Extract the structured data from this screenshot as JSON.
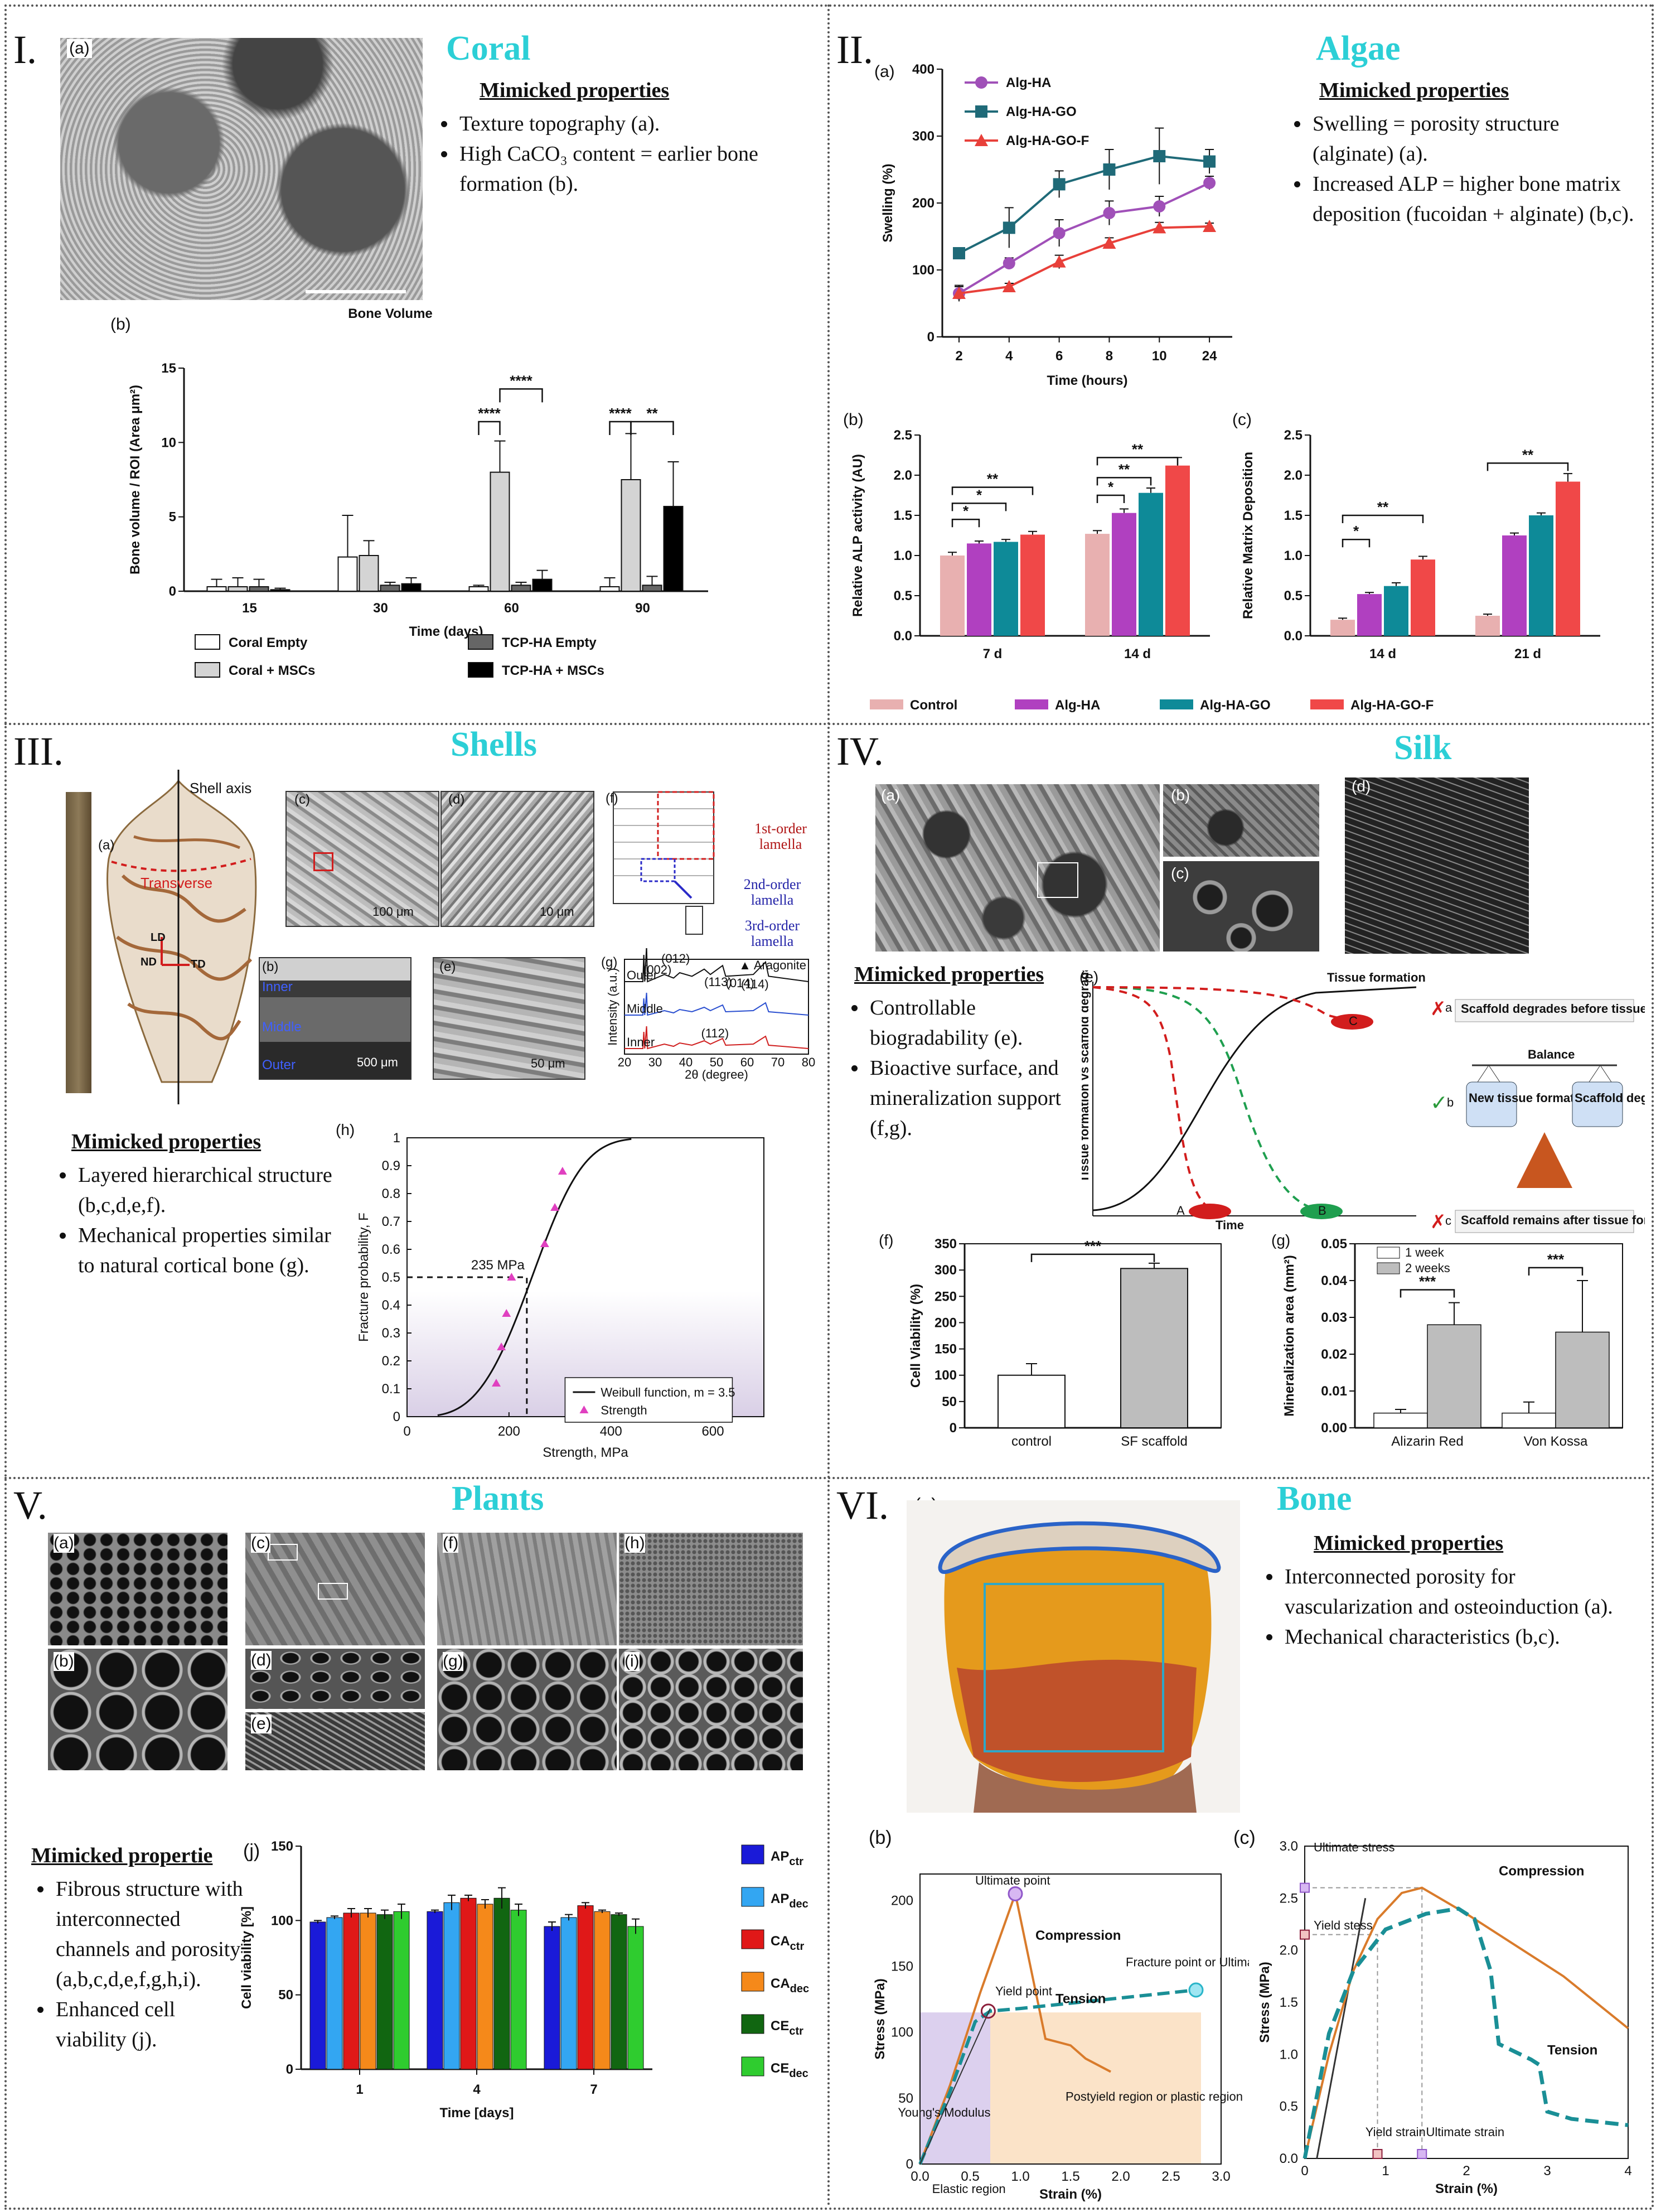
{
  "panels": {
    "coral": {
      "roman": "I.",
      "title": "Coral",
      "sublabels": {
        "a": "(a)",
        "b": "(b)"
      },
      "props_head": "Mimicked properties",
      "props": [
        "Texture topography (a).",
        "High CaCO₃ content = earlier bone formation (b)."
      ]
    },
    "algae": {
      "roman": "II.",
      "title": "Algae",
      "sublabels": {
        "a": "(a)",
        "b": "(b)",
        "c": "(c)"
      },
      "props_head": "Mimicked properties",
      "props": [
        "Swelling = porosity structure (alginate) (a).",
        "Increased ALP = higher bone matrix deposition (fucoidan + alginate) (b,c)."
      ]
    },
    "shells": {
      "roman": "III.",
      "title": "Shells",
      "sublabels": {
        "a": "(a)",
        "b": "(b)",
        "c": "(c)",
        "d": "(d)",
        "e": "(e)",
        "f": "(f)",
        "g": "(g)",
        "h": "(h)"
      },
      "shell_axis": "Shell axis",
      "transverse": "Transverse",
      "dirs": {
        "ld": "LD",
        "nd": "ND",
        "td": "TD"
      },
      "scale_c": "100 μm",
      "scale_d": "10 μm",
      "scale_b": "500 μm",
      "scale_e": "50 μm",
      "layers": {
        "inner": "Inner",
        "middle": "Middle",
        "outer": "Outer"
      },
      "lamella": {
        "first": "1st-order lamella",
        "second": "2nd-order lamella",
        "third": "3rd-order lamella"
      },
      "props_head": "Mimicked properties",
      "props": [
        "Layered hierarchical structure (b,c,d,e,f).",
        "Mechanical properties similar to natural cortical bone (g)."
      ]
    },
    "silk": {
      "roman": "IV.",
      "title": "Silk",
      "sublabels": {
        "a": "(a)",
        "b": "(b)",
        "c": "(c)",
        "d": "(d)",
        "e": "(e)",
        "f": "(f)",
        "g": "(g)"
      },
      "props_head": "Mimicked properties",
      "props": [
        "Controllable biogradability (e).",
        "Bioactive surface, and mineralization support (f,g)."
      ],
      "degradation": {
        "tissue_formation": "Tissue formation",
        "yaxis": "Tissue formation vs scaffold degradation",
        "xaxis": "Time",
        "marks": {
          "a": "A",
          "b": "B",
          "c": "C"
        },
        "case_a": "Scaffold degrades before tissue formation(failure)",
        "case_c": "Scaffold remains after tissue formation(failure)",
        "balance": "Balance",
        "new_tissue": "New tissue formation",
        "scaffold_rate": "Scaffold degradation rate",
        "letters": {
          "a": "a",
          "b": "b",
          "c": "c"
        }
      }
    },
    "plants": {
      "roman": "V.",
      "title": "Plants",
      "sublabels": {
        "a": "(a)",
        "b": "(b)",
        "c": "(c)",
        "d": "(d)",
        "e": "(e)",
        "f": "(f)",
        "g": "(g)",
        "h": "(h)",
        "i": "(i)",
        "j": "(j)"
      },
      "props_head": "Mimicked propertie",
      "props": [
        "Fibrous structure with interconnected channels and porosity (a,b,c,d,e,f,g,h,i).",
        "Enhanced cell viability (j)."
      ]
    },
    "bone": {
      "roman": "VI.",
      "title": "Bone",
      "sublabels": {
        "a": "(a)",
        "b": "(b)",
        "c": "(c)"
      },
      "props_head": "Mimicked properties",
      "props": [
        "Interconnected porosity for vascularization and osteoinduction (a).",
        "Mechanical characteristics (b,c)."
      ]
    }
  },
  "chart_data": [
    {
      "id": "coral-bone-volume",
      "type": "bar",
      "title": "Bone Volume",
      "xlabel": "Time (days)",
      "ylabel": "Bone volume / ROI (Area μm²)",
      "ylim": [
        0,
        15
      ],
      "yticks": [
        0,
        5,
        10,
        15
      ],
      "categories": [
        "15",
        "30",
        "60",
        "90"
      ],
      "series": [
        {
          "name": "Coral Empty",
          "values": [
            0.3,
            2.3,
            0.3,
            0.3
          ],
          "err": [
            0.5,
            2.8,
            0.1,
            0.6
          ],
          "color": "#ffffff"
        },
        {
          "name": "Coral + MSCs",
          "values": [
            0.3,
            2.4,
            8.0,
            7.5
          ],
          "err": [
            0.6,
            1.0,
            2.1,
            3.1
          ],
          "color": "#d4d4d4"
        },
        {
          "name": "TCP-HA Empty",
          "values": [
            0.3,
            0.4,
            0.4,
            0.4
          ],
          "err": [
            0.5,
            0.2,
            0.2,
            0.6
          ],
          "color": "#666666"
        },
        {
          "name": "TCP-HA + MSCs",
          "values": [
            0.1,
            0.5,
            0.8,
            5.7
          ],
          "err": [
            0.1,
            0.4,
            0.6,
            3.0
          ],
          "color": "#000000"
        }
      ],
      "sig": [
        "****",
        "****",
        "****",
        "**"
      ]
    },
    {
      "id": "algae-swelling",
      "type": "line",
      "xlabel": "Time (hours)",
      "ylabel": "Swelling (%)",
      "ylim": [
        0,
        400
      ],
      "yticks": [
        0,
        100,
        200,
        300,
        400
      ],
      "x": [
        "2",
        "4",
        "6",
        "8",
        "10",
        "24"
      ],
      "series": [
        {
          "name": "Alg-HA",
          "values": [
            65,
            110,
            155,
            185,
            195,
            230
          ],
          "err": [
            10,
            8,
            20,
            18,
            15,
            10
          ],
          "color": "#a050b8",
          "marker": "circle"
        },
        {
          "name": "Alg-HA-GO",
          "values": [
            125,
            163,
            228,
            250,
            270,
            262
          ],
          "err": [
            8,
            30,
            20,
            30,
            42,
            18
          ],
          "color": "#1f6a78",
          "marker": "square"
        },
        {
          "name": "Alg-HA-GO-F",
          "values": [
            65,
            75,
            112,
            140,
            163,
            165
          ],
          "err": [
            12,
            5,
            10,
            8,
            8,
            5
          ],
          "color": "#e8403a",
          "marker": "triangle"
        }
      ]
    },
    {
      "id": "algae-alp",
      "type": "bar",
      "ylabel": "Relative ALP activity (AU)",
      "ylim": [
        0,
        2.5
      ],
      "yticks": [
        0,
        0.5,
        1.0,
        1.5,
        2.0,
        2.5
      ],
      "categories": [
        "7 d",
        "14 d"
      ],
      "series": [
        {
          "name": "Control",
          "values": [
            1.0,
            1.27
          ],
          "err": [
            0.04,
            0.04
          ],
          "color": "#e8b0b0"
        },
        {
          "name": "Alg-HA",
          "values": [
            1.15,
            1.53
          ],
          "err": [
            0.03,
            0.05
          ],
          "color": "#b040c0"
        },
        {
          "name": "Alg-HA-GO",
          "values": [
            1.17,
            1.78
          ],
          "err": [
            0.03,
            0.06
          ],
          "color": "#0e8a98"
        },
        {
          "name": "Alg-HA-GO-F",
          "values": [
            1.26,
            2.12
          ],
          "err": [
            0.04,
            0.1
          ],
          "color": "#f04848"
        }
      ],
      "sig": [
        "*",
        "*",
        "**",
        "*",
        "**",
        "**"
      ]
    },
    {
      "id": "algae-matrix",
      "type": "bar",
      "ylabel": "Relative Matrix Deposition",
      "ylim": [
        0,
        2.5
      ],
      "yticks": [
        0,
        0.5,
        1.0,
        1.5,
        2.0,
        2.5
      ],
      "categories": [
        "14 d",
        "21 d"
      ],
      "series": [
        {
          "name": "Control",
          "values": [
            0.2,
            0.25
          ],
          "err": [
            0.02,
            0.02
          ],
          "color": "#e8b0b0"
        },
        {
          "name": "Alg-HA",
          "values": [
            0.52,
            1.25
          ],
          "err": [
            0.02,
            0.03
          ],
          "color": "#b040c0"
        },
        {
          "name": "Alg-HA-GO",
          "values": [
            0.62,
            1.5
          ],
          "err": [
            0.04,
            0.03
          ],
          "color": "#0e8a98"
        },
        {
          "name": "Alg-HA-GO-F",
          "values": [
            0.95,
            1.92
          ],
          "err": [
            0.04,
            0.1
          ],
          "color": "#f04848"
        }
      ],
      "sig": [
        "*",
        "**",
        "**"
      ]
    },
    {
      "id": "shells-xrd",
      "type": "line",
      "xlabel": "2θ (degree)",
      "ylabel": "Intensity (a.u.)",
      "xlim": [
        20,
        80
      ],
      "xticks": [
        20,
        30,
        40,
        50,
        60,
        70,
        80
      ],
      "series": [
        {
          "name": "Outer"
        },
        {
          "name": "Middle"
        },
        {
          "name": "Inner"
        }
      ],
      "legend": "Aragonite",
      "peaks": [
        "(002)",
        "(012)",
        "(113)",
        "(014)",
        "(114)",
        "(112)"
      ]
    },
    {
      "id": "shells-weibull",
      "type": "scatter",
      "xlabel": "Strength, MPa",
      "ylabel": "Fracture probability, F",
      "xlim": [
        0,
        700
      ],
      "ylim": [
        0,
        1
      ],
      "xticks": [
        0,
        200,
        400,
        600
      ],
      "yticks": [
        0,
        0.1,
        0.2,
        0.3,
        0.4,
        0.5,
        0.6,
        0.7,
        0.8,
        0.9,
        1
      ],
      "points": [
        [
          175,
          0.12
        ],
        [
          185,
          0.25
        ],
        [
          195,
          0.37
        ],
        [
          205,
          0.5
        ],
        [
          270,
          0.62
        ],
        [
          290,
          0.75
        ],
        [
          305,
          0.88
        ]
      ],
      "weibull_scale": 272,
      "weibull_m": 3.5,
      "annotation": "235 MPa",
      "annotation_x": 235,
      "legend": [
        "Weibull function, m = 3.5",
        "Strength"
      ]
    },
    {
      "id": "silk-viability",
      "type": "bar",
      "ylabel": "Cell Viability (%)",
      "ylim": [
        0,
        350
      ],
      "yticks": [
        0,
        50,
        100,
        150,
        200,
        250,
        300,
        350
      ],
      "categories": [
        "control",
        "SF scaffold"
      ],
      "values": [
        100,
        303
      ],
      "err": [
        22,
        10
      ],
      "sig": "***"
    },
    {
      "id": "silk-mineralization",
      "type": "bar",
      "ylabel": "Mineralization area (mm²)",
      "ylim": [
        0,
        0.05
      ],
      "yticks": [
        0,
        0.01,
        0.02,
        0.03,
        0.04,
        0.05
      ],
      "categories": [
        "Alizarin Red",
        "Von Kossa"
      ],
      "series": [
        {
          "name": "1 week",
          "values": [
            0.004,
            0.004
          ],
          "err": [
            0.001,
            0.003
          ],
          "color": "#ffffff"
        },
        {
          "name": "2 weeks",
          "values": [
            0.028,
            0.026
          ],
          "err": [
            0.006,
            0.014
          ],
          "color": "#bdbdbd"
        }
      ],
      "sig": [
        "***",
        "***"
      ]
    },
    {
      "id": "plants-viability",
      "type": "bar",
      "xlabel": "Time [days]",
      "ylabel": "Cell viability [%]",
      "ylim": [
        0,
        150
      ],
      "yticks": [
        0,
        50,
        100,
        150
      ],
      "categories": [
        "1",
        "4",
        "7"
      ],
      "series": [
        {
          "name": "AP_ctr",
          "label": "AP",
          "sub": "ctr",
          "values": [
            99,
            106,
            96
          ],
          "err": [
            1,
            1,
            3
          ],
          "color": "#1a1ad8"
        },
        {
          "name": "AP_dec",
          "label": "AP",
          "sub": "dec",
          "values": [
            102,
            112,
            102
          ],
          "err": [
            1,
            5,
            2
          ],
          "color": "#33a6f2"
        },
        {
          "name": "CA_ctr",
          "label": "CA",
          "sub": "ctr",
          "values": [
            105,
            115,
            110
          ],
          "err": [
            3,
            2,
            2
          ],
          "color": "#e01818"
        },
        {
          "name": "CA_dec",
          "label": "CA",
          "sub": "dec",
          "values": [
            105,
            111,
            106
          ],
          "err": [
            3,
            3,
            1
          ],
          "color": "#f5891a"
        },
        {
          "name": "CE_ctr",
          "label": "CE",
          "sub": "ctr",
          "values": [
            104,
            115,
            104
          ],
          "err": [
            3,
            7,
            1
          ],
          "color": "#116611"
        },
        {
          "name": "CE_dec",
          "label": "CE",
          "sub": "dec",
          "values": [
            106,
            107,
            96
          ],
          "err": [
            5,
            4,
            5
          ],
          "color": "#2fcc2f"
        }
      ]
    },
    {
      "id": "bone-stress-strain-b",
      "type": "line",
      "xlabel": "Strain (%)",
      "ylabel": "Stress (MPa)",
      "xlim": [
        0,
        3.0
      ],
      "ylim": [
        0,
        220
      ],
      "xticks": [
        0.0,
        0.5,
        1.0,
        1.5,
        2.0,
        2.5,
        3.0
      ],
      "yticks": [
        0,
        50,
        100,
        150,
        200
      ],
      "series": [
        {
          "name": "Compression",
          "color": "#d97b2b",
          "points": [
            [
              0,
              0
            ],
            [
              0.3,
              60
            ],
            [
              0.6,
              130
            ],
            [
              0.95,
              205
            ],
            [
              1.1,
              150
            ],
            [
              1.25,
              95
            ],
            [
              1.5,
              90
            ],
            [
              1.65,
              80
            ],
            [
              1.9,
              70
            ]
          ]
        },
        {
          "name": "Tension",
          "color": "#1a8f96",
          "points": [
            [
              0,
              0
            ],
            [
              0.3,
              55
            ],
            [
              0.55,
              108
            ],
            [
              0.7,
              116
            ],
            [
              1.0,
              118
            ],
            [
              1.5,
              122
            ],
            [
              2.0,
              126
            ],
            [
              2.5,
              130
            ],
            [
              2.75,
              132
            ]
          ]
        }
      ],
      "annotations": {
        "ultimate": "Ultimate point",
        "yield": "Yield point",
        "fracture": "Fracture point or Ultimate point",
        "youngs": "Young's Modulus",
        "elastic": "Elastic region",
        "postyield": "Postyield region or plastic region"
      }
    },
    {
      "id": "bone-stress-strain-c",
      "type": "line",
      "xlabel": "Strain (%)",
      "ylabel": "Stress (MPa)",
      "xlim": [
        0,
        4
      ],
      "ylim": [
        0,
        3.0
      ],
      "xticks": [
        0,
        1,
        2,
        3,
        4
      ],
      "yticks": [
        0.0,
        0.5,
        1.0,
        1.5,
        2.0,
        2.5,
        3.0
      ],
      "series": [
        {
          "name": "Compression",
          "color": "#d97b2b",
          "points": [
            [
              0,
              0
            ],
            [
              0.3,
              1.0
            ],
            [
              0.6,
              1.8
            ],
            [
              0.9,
              2.3
            ],
            [
              1.2,
              2.55
            ],
            [
              1.45,
              2.6
            ],
            [
              2.0,
              2.35
            ],
            [
              2.6,
              2.05
            ],
            [
              3.2,
              1.75
            ],
            [
              4.0,
              1.25
            ]
          ]
        },
        {
          "name": "Tension",
          "color": "#1a8f96",
          "points": [
            [
              0,
              0
            ],
            [
              0.3,
              1.2
            ],
            [
              0.6,
              1.8
            ],
            [
              1.0,
              2.2
            ],
            [
              1.5,
              2.35
            ],
            [
              1.9,
              2.4
            ],
            [
              2.1,
              2.3
            ],
            [
              2.3,
              1.8
            ],
            [
              2.4,
              1.1
            ],
            [
              2.8,
              0.95
            ],
            [
              2.9,
              0.9
            ],
            [
              3.0,
              0.45
            ],
            [
              3.3,
              0.38
            ],
            [
              4.0,
              0.32
            ]
          ]
        }
      ],
      "annotations": {
        "ultimate_stress": "Ultimate stress",
        "yield_stress": "Yield stess",
        "yield_strain": "Yield strain",
        "ultimate_strain": "Ultimate strain"
      }
    }
  ]
}
